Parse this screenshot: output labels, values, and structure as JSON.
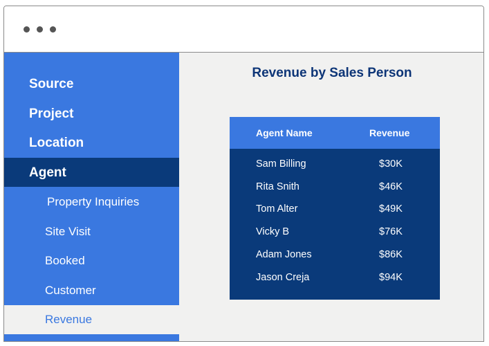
{
  "sidebar": {
    "items": [
      "Source",
      "Project",
      "Location",
      "Agent"
    ],
    "active": "Agent",
    "subitems": [
      "Property Inquiries",
      "Site Visit",
      "Booked",
      "Customer",
      "Revenue"
    ],
    "selected": "Revenue"
  },
  "main": {
    "title": "Revenue by Sales Person",
    "table": {
      "header": [
        "Agent Name",
        "Revenue"
      ],
      "rows": [
        [
          "Sam Billing",
          "$30K"
        ],
        [
          "Rita Snith",
          "$46K"
        ],
        [
          "Tom Alter",
          "$49K"
        ],
        [
          "Vicky B",
          "$76K"
        ],
        [
          "Adam Jones",
          "$86K"
        ],
        [
          "Jason Creja",
          "$94K"
        ]
      ]
    }
  }
}
